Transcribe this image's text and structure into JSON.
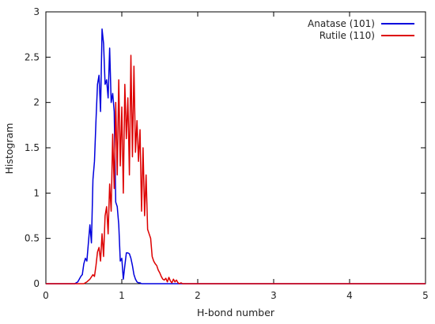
{
  "chart_data": {
    "type": "line",
    "title": "",
    "xlabel": "H-bond number",
    "ylabel": "Histogram",
    "xlim": [
      0,
      5
    ],
    "ylim": [
      0,
      3
    ],
    "xticks": [
      "0",
      "1",
      "2",
      "3",
      "4",
      "5"
    ],
    "yticks": [
      "0",
      "0.5",
      "1",
      "1.5",
      "2",
      "2.5",
      "3"
    ],
    "grid": false,
    "legend_position": "top-right",
    "series": [
      {
        "name": "Anatase (101)",
        "color": "#0000dd",
        "x": [
          0,
          0.38,
          0.42,
          0.46,
          0.48,
          0.5,
          0.52,
          0.54,
          0.56,
          0.58,
          0.6,
          0.62,
          0.64,
          0.66,
          0.68,
          0.7,
          0.72,
          0.74,
          0.76,
          0.78,
          0.8,
          0.82,
          0.84,
          0.86,
          0.88,
          0.9,
          0.92,
          0.94,
          0.96,
          0.98,
          1.0,
          1.02,
          1.04,
          1.06,
          1.08,
          1.1,
          1.12,
          1.14,
          1.16,
          1.18,
          1.2,
          1.22,
          1.24,
          1.26,
          1.3,
          1.35,
          1.4,
          1.5,
          2.0,
          5.0
        ],
        "y": [
          0,
          0,
          0.02,
          0.08,
          0.1,
          0.22,
          0.28,
          0.25,
          0.45,
          0.65,
          0.45,
          1.15,
          1.35,
          1.8,
          2.2,
          2.3,
          1.9,
          2.81,
          2.65,
          2.2,
          2.25,
          2.05,
          2.6,
          2.0,
          2.1,
          1.9,
          0.9,
          0.85,
          0.65,
          0.25,
          0.28,
          0.05,
          0.2,
          0.34,
          0.34,
          0.33,
          0.28,
          0.2,
          0.1,
          0.05,
          0.02,
          0.01,
          0.01,
          0.0,
          0.0,
          0,
          0,
          0,
          0,
          0
        ]
      },
      {
        "name": "Rutile (110)",
        "color": "#dd0000",
        "x": [
          0,
          0.5,
          0.54,
          0.58,
          0.62,
          0.64,
          0.66,
          0.68,
          0.7,
          0.72,
          0.74,
          0.76,
          0.78,
          0.8,
          0.82,
          0.84,
          0.86,
          0.88,
          0.9,
          0.92,
          0.94,
          0.96,
          0.98,
          1.0,
          1.02,
          1.04,
          1.06,
          1.08,
          1.1,
          1.12,
          1.14,
          1.16,
          1.18,
          1.2,
          1.22,
          1.24,
          1.26,
          1.28,
          1.3,
          1.32,
          1.34,
          1.36,
          1.38,
          1.4,
          1.42,
          1.44,
          1.46,
          1.48,
          1.5,
          1.52,
          1.54,
          1.56,
          1.58,
          1.6,
          1.62,
          1.64,
          1.66,
          1.68,
          1.7,
          1.72,
          1.74,
          1.76,
          1.78,
          1.8,
          1.85,
          1.9,
          5.0
        ],
        "y": [
          0,
          0,
          0.02,
          0.05,
          0.1,
          0.08,
          0.2,
          0.35,
          0.4,
          0.25,
          0.55,
          0.3,
          0.75,
          0.85,
          0.55,
          1.1,
          0.8,
          1.65,
          1.05,
          2.0,
          1.2,
          2.25,
          1.3,
          1.95,
          1.0,
          2.2,
          1.6,
          2.05,
          1.2,
          2.52,
          1.4,
          2.4,
          1.45,
          1.8,
          1.35,
          1.7,
          0.8,
          1.5,
          0.75,
          1.2,
          0.6,
          0.55,
          0.5,
          0.3,
          0.25,
          0.22,
          0.2,
          0.15,
          0.12,
          0.08,
          0.05,
          0.04,
          0.06,
          0.02,
          0.07,
          0.03,
          0.01,
          0.05,
          0.02,
          0.04,
          0.01,
          0.0,
          0.01,
          0.0,
          0,
          0,
          0
        ]
      }
    ]
  }
}
